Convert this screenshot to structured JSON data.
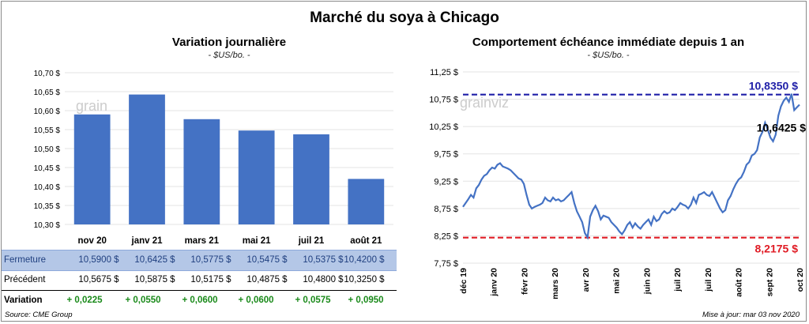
{
  "title": "Marché du soya à Chicago",
  "left": {
    "title": "Variation journalière",
    "subtitle": "- $US/bo. -"
  },
  "right": {
    "title": "Comportement échéance immédiate depuis 1 an",
    "subtitle": "- $US/bo. -"
  },
  "chart_data": [
    {
      "type": "bar",
      "title": "Variation journalière",
      "ylabel": "$US/bo.",
      "categories": [
        "nov 20",
        "janv 21",
        "mars 21",
        "mai 21",
        "juil 21",
        "août 21"
      ],
      "values": [
        10.59,
        10.6425,
        10.5775,
        10.5475,
        10.5375,
        10.42
      ],
      "ylim": [
        10.3,
        10.7
      ],
      "yticks": [
        10.3,
        10.35,
        10.4,
        10.45,
        10.5,
        10.55,
        10.6,
        10.65,
        10.7
      ],
      "ytick_labels": [
        "10,30 $",
        "10,35 $",
        "10,40 $",
        "10,45 $",
        "10,50 $",
        "10,55 $",
        "10,60 $",
        "10,65 $",
        "10,70 $"
      ],
      "color": "#4472c4"
    },
    {
      "type": "line",
      "title": "Comportement échéance immédiate depuis 1 an",
      "ylabel": "$US/bo.",
      "x_labels": [
        "déc 19",
        "janv 20",
        "févr 20",
        "mars 20",
        "avr 20",
        "mai 20",
        "juin 20",
        "juil 20",
        "juil 20",
        "août 20",
        "sept 20",
        "oct 20"
      ],
      "ylim": [
        7.75,
        11.25
      ],
      "yticks": [
        7.75,
        8.25,
        8.75,
        9.25,
        9.75,
        10.25,
        10.75,
        11.25
      ],
      "ytick_labels": [
        "7,75 $",
        "8,25 $",
        "8,75 $",
        "9,25 $",
        "9,75 $",
        "10,25 $",
        "10,75 $",
        "11,25 $"
      ],
      "series": [
        {
          "name": "Échéance immédiate",
          "color": "#4472c4",
          "values": [
            8.78,
            8.85,
            8.92,
            9.0,
            8.95,
            9.12,
            9.18,
            9.28,
            9.35,
            9.38,
            9.45,
            9.5,
            9.48,
            9.55,
            9.58,
            9.52,
            9.5,
            9.48,
            9.45,
            9.4,
            9.35,
            9.3,
            9.28,
            9.2,
            9.0,
            8.82,
            8.75,
            8.78,
            8.8,
            8.82,
            8.85,
            8.95,
            8.9,
            8.88,
            8.95,
            8.9,
            8.92,
            8.88,
            8.9,
            8.95,
            9.0,
            9.05,
            8.85,
            8.7,
            8.6,
            8.5,
            8.3,
            8.22,
            8.6,
            8.72,
            8.8,
            8.7,
            8.55,
            8.62,
            8.6,
            8.58,
            8.5,
            8.45,
            8.4,
            8.33,
            8.28,
            8.35,
            8.45,
            8.5,
            8.4,
            8.48,
            8.42,
            8.38,
            8.45,
            8.5,
            8.55,
            8.45,
            8.6,
            8.52,
            8.55,
            8.65,
            8.7,
            8.66,
            8.68,
            8.75,
            8.72,
            8.78,
            8.85,
            8.82,
            8.8,
            8.75,
            8.82,
            8.95,
            8.85,
            9.0,
            9.02,
            9.05,
            9.0,
            8.98,
            9.05,
            8.95,
            8.85,
            8.75,
            8.68,
            8.72,
            8.9,
            8.98,
            9.1,
            9.2,
            9.28,
            9.32,
            9.42,
            9.55,
            9.6,
            9.72,
            9.75,
            9.82,
            10.05,
            10.15,
            10.32,
            10.2,
            10.05,
            9.98,
            10.1,
            10.45,
            10.62,
            10.72,
            10.78,
            10.7,
            10.85,
            10.55,
            10.6,
            10.65
          ]
        }
      ],
      "reference_lines": [
        {
          "name": "max",
          "value": 10.835,
          "label": "10,8350 $",
          "color": "#1f1fa8"
        },
        {
          "name": "min",
          "value": 8.2175,
          "label": "8,2175 $",
          "color": "#e01b24"
        }
      ],
      "last_value_label": "10,6425 $"
    }
  ],
  "table": {
    "rows": [
      {
        "label": "Fermeture",
        "values": [
          "10,5900  $",
          "10,6425  $",
          "10,5775  $",
          "10,5475  $",
          "10,5375  $",
          "10,4200  $"
        ]
      },
      {
        "label": "Précédent",
        "values": [
          "10,5675  $",
          "10,5875  $",
          "10,5175  $",
          "10,4875  $",
          "10,4800  $",
          "10,3250  $"
        ]
      },
      {
        "label": "Variation",
        "values": [
          "+ 0,0225",
          "+ 0,0550",
          "+ 0,0600",
          "+ 0,0600",
          "+ 0,0575",
          "+ 0,0950"
        ]
      }
    ]
  },
  "watermark": "grain",
  "watermark_right": "grainviz",
  "footer": {
    "source": "Source: CME Group",
    "update": "Mise à jour: mar 03 nov 2020"
  }
}
